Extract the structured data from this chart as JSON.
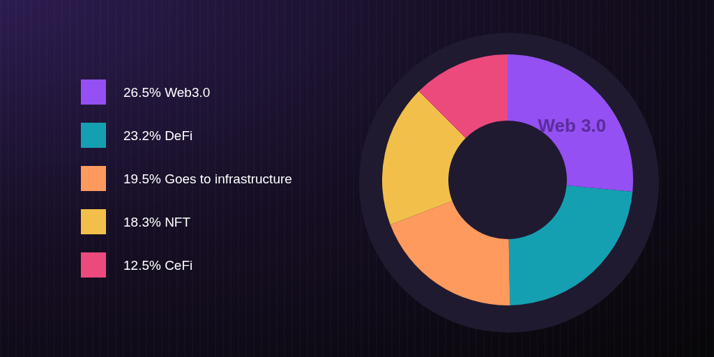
{
  "chart_data": {
    "type": "donut",
    "categories": [
      "Web3.0",
      "DeFi",
      "Goes to infrastructure",
      "NFT",
      "CeFi"
    ],
    "values": [
      26.5,
      23.2,
      19.5,
      18.3,
      12.5
    ],
    "colors": [
      "#9450f2",
      "#15a0b2",
      "#ff9a5e",
      "#f2c04a",
      "#ec4a7c"
    ],
    "value_labels": [
      "26.5%",
      "23.2%",
      "19.5%",
      "18.3%",
      "12.5%"
    ],
    "legend": "left",
    "annotations": [
      "Web 3.0"
    ]
  }
}
